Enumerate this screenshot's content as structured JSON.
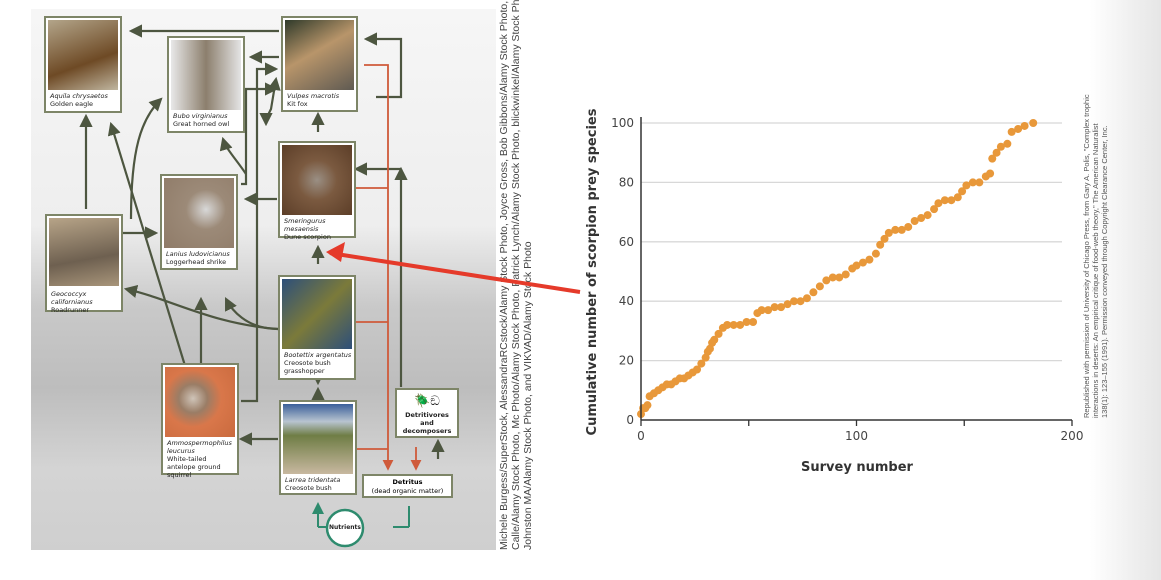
{
  "food_web": {
    "nodes": [
      {
        "sci": "Aquila chrysaetos",
        "common": "Golden eagle",
        "color": "#8a6a40"
      },
      {
        "sci": "Bubo virginianus",
        "common": "Great horned owl",
        "color": "#c9c3b8"
      },
      {
        "sci": "Vulpes macrotis",
        "common": "Kit fox",
        "color": "#7a6e55"
      },
      {
        "sci": "Smeringurus mesaensis",
        "common": "Dune scorpion",
        "color": "#7b5a40"
      },
      {
        "sci": "Lanius ludovicianus",
        "common": "Loggerhead shrike",
        "color": "#9c8a78"
      },
      {
        "sci": "Geococcyx californianus",
        "common": "Roadrunner",
        "color": "#a08a6e"
      },
      {
        "sci": "Bootettix argentatus",
        "common": "Creosote bush grasshopper",
        "color": "#2d4f7a"
      },
      {
        "sci": "Ammospermophilus leucurus",
        "common": "White-tailed antelope ground squirrel",
        "color": "#d9774a"
      },
      {
        "sci": "Larrea tridentata",
        "common": "Creosote bush",
        "color": "#7b8a4e"
      }
    ],
    "detritivores": "Detritivores and decomposers",
    "detritus_title": "Detritus",
    "detritus_sub": "(dead organic matter)",
    "nutrients": "Nutrients",
    "colors": {
      "feeding": "#4d5640",
      "detritus": "#cf5a3a",
      "nutrients": "#2e8b6e",
      "highlight_arrow": "#e53a2a"
    }
  },
  "photo_credit": [
    "Michele Burgess/SuperStock, AlessandraRCstock/Alamy Stock Photo, Joyce Gross, Bob Gibbons/Alamy Stock Photo, Tomas",
    "Calle/Alamy Stock Photo, Mc Photo/Alamy Stock Photo, Patrick Lynch/Alamy Stock Photo, blickwinkel/Alamy Stock Photo, Don",
    "Johnston MA/Alamy Stock Photo, and VIKVAD/Alamy Stock Photo"
  ],
  "chart_credit": [
    "Republished with permission of University of Chicago Press, from Gary A. Polis, \"Complex trophic",
    "interactions in deserts: An empirical critique of food-web theory,\" The American Naturalist",
    "138(1): 123–155 (1991). Permission conveyed through Copyright Clearance Center, Inc."
  ],
  "chart_data": {
    "type": "scatter",
    "xlabel": "Survey number",
    "ylabel": "Cumulative number of scorpion prey species",
    "xlim": [
      0,
      200
    ],
    "ylim": [
      0,
      100
    ],
    "xticks": [
      0,
      100,
      200
    ],
    "xminor": [
      50,
      150
    ],
    "yticks": [
      0,
      20,
      40,
      60,
      80,
      100
    ],
    "grid": "horizontal",
    "color": "#e8983a",
    "points": [
      [
        0,
        2
      ],
      [
        1,
        4
      ],
      [
        2,
        4
      ],
      [
        3,
        5
      ],
      [
        4,
        8
      ],
      [
        6,
        9
      ],
      [
        8,
        10
      ],
      [
        10,
        11
      ],
      [
        12,
        12
      ],
      [
        14,
        12
      ],
      [
        16,
        13
      ],
      [
        18,
        14
      ],
      [
        20,
        14
      ],
      [
        22,
        15
      ],
      [
        24,
        16
      ],
      [
        26,
        17
      ],
      [
        28,
        19
      ],
      [
        30,
        21
      ],
      [
        31,
        23
      ],
      [
        32,
        24
      ],
      [
        33,
        26
      ],
      [
        34,
        27
      ],
      [
        36,
        29
      ],
      [
        38,
        31
      ],
      [
        40,
        32
      ],
      [
        43,
        32
      ],
      [
        46,
        32
      ],
      [
        49,
        33
      ],
      [
        52,
        33
      ],
      [
        54,
        36
      ],
      [
        56,
        37
      ],
      [
        59,
        37
      ],
      [
        62,
        38
      ],
      [
        65,
        38
      ],
      [
        68,
        39
      ],
      [
        71,
        40
      ],
      [
        74,
        40
      ],
      [
        77,
        41
      ],
      [
        80,
        43
      ],
      [
        83,
        45
      ],
      [
        86,
        47
      ],
      [
        89,
        48
      ],
      [
        92,
        48
      ],
      [
        95,
        49
      ],
      [
        98,
        51
      ],
      [
        100,
        52
      ],
      [
        103,
        53
      ],
      [
        106,
        54
      ],
      [
        109,
        56
      ],
      [
        111,
        59
      ],
      [
        113,
        61
      ],
      [
        115,
        63
      ],
      [
        118,
        64
      ],
      [
        121,
        64
      ],
      [
        124,
        65
      ],
      [
        127,
        67
      ],
      [
        130,
        68
      ],
      [
        133,
        69
      ],
      [
        136,
        71
      ],
      [
        138,
        73
      ],
      [
        141,
        74
      ],
      [
        144,
        74
      ],
      [
        147,
        75
      ],
      [
        149,
        77
      ],
      [
        151,
        79
      ],
      [
        154,
        80
      ],
      [
        157,
        80
      ],
      [
        160,
        82
      ],
      [
        162,
        83
      ],
      [
        163,
        88
      ],
      [
        165,
        90
      ],
      [
        167,
        92
      ],
      [
        170,
        93
      ],
      [
        172,
        97
      ],
      [
        175,
        98
      ],
      [
        178,
        99
      ],
      [
        182,
        100
      ]
    ]
  }
}
